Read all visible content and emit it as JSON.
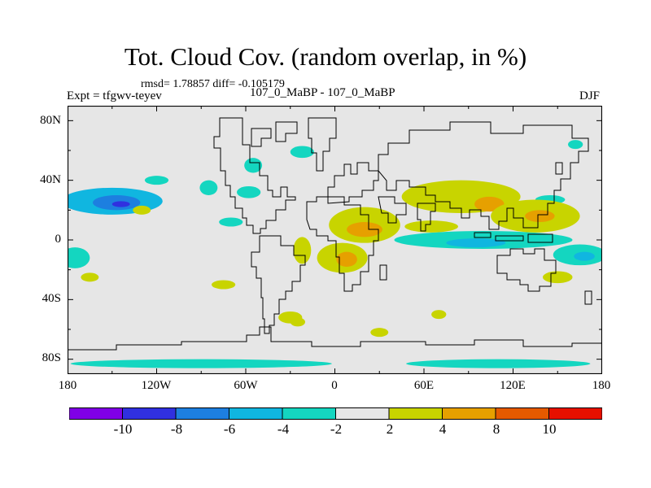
{
  "header": {
    "title": "Tot. Cloud Cov. (random overlap, in %)",
    "stats": "rmsd= 1.78857 diff= -0.105179",
    "experiment": "Expt = tfgwv-teyev",
    "case": "107_0_MaBP - 107_0_MaBP",
    "season": "DJF"
  },
  "map": {
    "lat_labels": [
      "80N",
      "40N",
      "0",
      "40S",
      "80S"
    ],
    "lon_labels": [
      "180",
      "120W",
      "60W",
      "0",
      "60E",
      "120E",
      "180"
    ],
    "background_color": "#e6e6e6",
    "anomalies": [
      {
        "lon": -150,
        "lat": 26,
        "rx": 34,
        "ry": 9,
        "level": -5
      },
      {
        "lon": -147,
        "lat": 25,
        "rx": 16,
        "ry": 5,
        "level": -6
      },
      {
        "lon": -144,
        "lat": 24,
        "rx": 6,
        "ry": 2,
        "level": -7
      },
      {
        "lon": -22,
        "lat": 59,
        "rx": 8,
        "ry": 4,
        "level": -3
      },
      {
        "lon": -58,
        "lat": 32,
        "rx": 8,
        "ry": 4,
        "level": -3
      },
      {
        "lon": -85,
        "lat": 35,
        "rx": 6,
        "ry": 5,
        "level": -3
      },
      {
        "lon": -55,
        "lat": 50,
        "rx": 6,
        "ry": 5,
        "level": -3
      },
      {
        "lon": -70,
        "lat": 12,
        "rx": 8,
        "ry": 3,
        "level": -3
      },
      {
        "lon": 100,
        "lat": 0,
        "rx": 60,
        "ry": 6,
        "level": -3
      },
      {
        "lon": 95,
        "lat": -2,
        "rx": 20,
        "ry": 3,
        "level": -5
      },
      {
        "lon": 165,
        "lat": -10,
        "rx": 18,
        "ry": 7,
        "level": -3
      },
      {
        "lon": 168,
        "lat": -11,
        "rx": 7,
        "ry": 3,
        "level": -5
      },
      {
        "lon": -175,
        "lat": -12,
        "rx": 10,
        "ry": 7,
        "level": -3
      },
      {
        "lon": -120,
        "lat": 40,
        "rx": 8,
        "ry": 3,
        "level": -3
      },
      {
        "lon": 145,
        "lat": 27,
        "rx": 10,
        "ry": 3,
        "level": -3
      },
      {
        "lon": -90,
        "lat": -83,
        "rx": 88,
        "ry": 3,
        "level": -3
      },
      {
        "lon": 110,
        "lat": -83,
        "rx": 62,
        "ry": 3,
        "level": -3
      },
      {
        "lon": 162,
        "lat": 64,
        "rx": 5,
        "ry": 3,
        "level": -3
      },
      {
        "lon": 85,
        "lat": 29,
        "rx": 40,
        "ry": 11,
        "level": 3
      },
      {
        "lon": 104,
        "lat": 24,
        "rx": 10,
        "ry": 5,
        "level": 5
      },
      {
        "lon": 135,
        "lat": 16,
        "rx": 30,
        "ry": 11,
        "level": 3
      },
      {
        "lon": 138,
        "lat": 16,
        "rx": 10,
        "ry": 4,
        "level": 5
      },
      {
        "lon": 20,
        "lat": 10,
        "rx": 24,
        "ry": 12,
        "level": 3
      },
      {
        "lon": 20,
        "lat": 7,
        "rx": 12,
        "ry": 5,
        "level": 5
      },
      {
        "lon": 5,
        "lat": -12,
        "rx": 17,
        "ry": 10,
        "level": 3
      },
      {
        "lon": 8,
        "lat": -13,
        "rx": 7,
        "ry": 5,
        "level": 5
      },
      {
        "lon": 65,
        "lat": 9,
        "rx": 18,
        "ry": 4,
        "level": 3
      },
      {
        "lon": -22,
        "lat": -7,
        "rx": 6,
        "ry": 9,
        "level": 3
      },
      {
        "lon": -30,
        "lat": -52,
        "rx": 8,
        "ry": 4,
        "level": 3
      },
      {
        "lon": 150,
        "lat": -25,
        "rx": 10,
        "ry": 4,
        "level": 3
      },
      {
        "lon": -165,
        "lat": -25,
        "rx": 6,
        "ry": 3,
        "level": 3
      },
      {
        "lon": -75,
        "lat": -30,
        "rx": 8,
        "ry": 3,
        "level": 3
      },
      {
        "lon": -25,
        "lat": -55,
        "rx": 5,
        "ry": 3,
        "level": 3
      },
      {
        "lon": 30,
        "lat": -62,
        "rx": 6,
        "ry": 3,
        "level": 3
      },
      {
        "lon": 70,
        "lat": -50,
        "rx": 5,
        "ry": 3,
        "level": 3
      },
      {
        "lon": -130,
        "lat": 20,
        "rx": 6,
        "ry": 3,
        "level": 3
      }
    ]
  },
  "colorbar": {
    "colors": [
      "#8000e6",
      "#3030e0",
      "#1d7fe0",
      "#10b6e0",
      "#14d6c0",
      "#e6e6e6",
      "#c8d400",
      "#e6a000",
      "#e55a00",
      "#e61000"
    ],
    "labels": [
      "-10",
      "-8",
      "-6",
      "-4",
      "-2",
      "2",
      "4",
      "8",
      "10"
    ]
  }
}
